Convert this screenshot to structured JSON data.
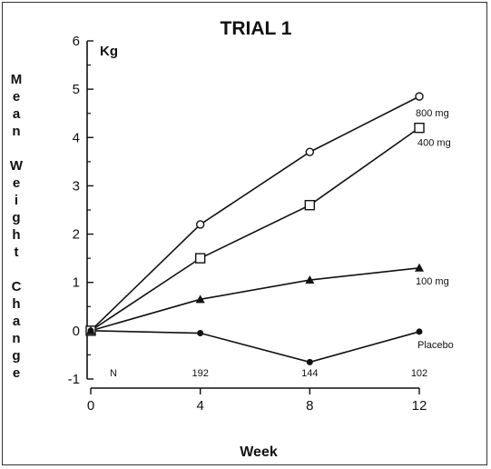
{
  "chart_data": {
    "type": "line",
    "title": "TRIAL 1",
    "ylabel": "Mean Weight Change",
    "y_unit": "Kg",
    "xlabel": "Week",
    "x": [
      0,
      4,
      8,
      12
    ],
    "xticks": [
      "0",
      "4",
      "8",
      "12"
    ],
    "yticks": [
      "-1",
      "0",
      "1",
      "2",
      "3",
      "4",
      "5",
      "6"
    ],
    "ylim": [
      -1,
      6
    ],
    "xlim": [
      0,
      12
    ],
    "grid": false,
    "n_row": {
      "label": "N",
      "values": [
        "192",
        "144",
        "102"
      ]
    },
    "series": [
      {
        "name": "800 mg",
        "marker": "circle-open",
        "values": [
          0,
          2.2,
          3.7,
          4.85
        ]
      },
      {
        "name": "400 mg",
        "marker": "square-open",
        "values": [
          0,
          1.5,
          2.6,
          4.2
        ]
      },
      {
        "name": "100 mg",
        "marker": "triangle-filled",
        "values": [
          0,
          0.65,
          1.05,
          1.3
        ]
      },
      {
        "name": "Placebo",
        "marker": "circle-filled",
        "values": [
          0,
          -0.05,
          -0.65,
          -0.02
        ]
      }
    ]
  }
}
